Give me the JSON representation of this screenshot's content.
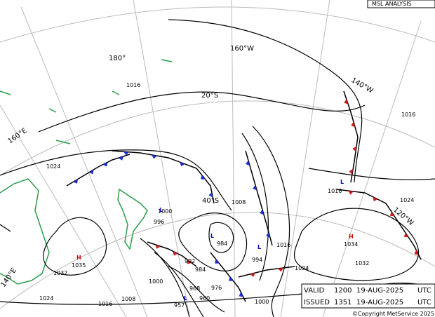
{
  "header": {
    "title": "MSL ANALYSIS"
  },
  "graticule_labels": [
    "180°",
    "160°W",
    "140°W",
    "120°W",
    "160°E",
    "140°E",
    "20°S",
    "40°S"
  ],
  "isobar_labels": [
    1016,
    1024,
    1016,
    1016,
    1024,
    1008,
    1000,
    996,
    984,
    994,
    1016,
    992,
    984,
    1032,
    1035,
    1034,
    1032,
    1024,
    1000,
    976,
    968,
    960,
    957,
    1024,
    1016,
    1008,
    1000
  ],
  "centres": [
    "H",
    "H",
    "L",
    "L",
    "L",
    "L",
    "L"
  ],
  "info": {
    "valid": {
      "label": "VALID",
      "time": "1200",
      "date": "19-AUG-2025",
      "zone": "UTC"
    },
    "issued": {
      "label": "ISSUED",
      "time": "1351",
      "date": "19-AUG-2025",
      "zone": "UTC"
    }
  },
  "copyright": "©Copyright MetService 2025"
}
